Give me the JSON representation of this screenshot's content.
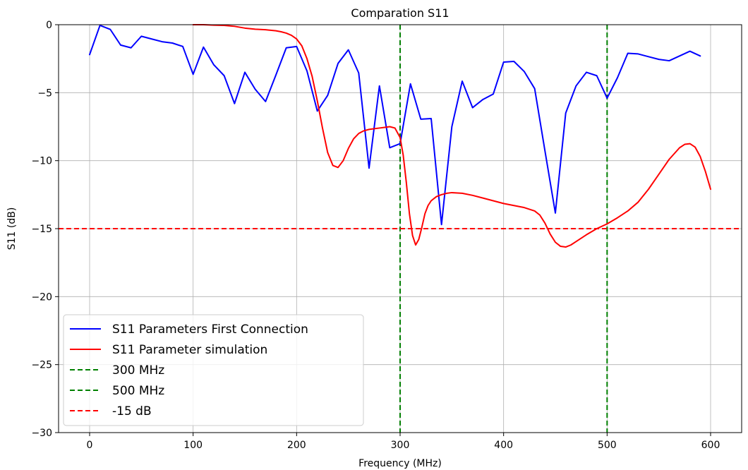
{
  "chart_data": {
    "type": "line",
    "title": "Comparation S11",
    "xlabel": "Frequency (MHz)",
    "ylabel": "S11 (dB)",
    "xlim": [
      -30,
      630
    ],
    "ylim": [
      -30,
      0
    ],
    "x_ticks": [
      0,
      100,
      200,
      300,
      400,
      500,
      600
    ],
    "y_ticks": [
      0,
      -5,
      -10,
      -15,
      -20,
      -25,
      -30
    ],
    "x_tick_labels": [
      "0",
      "100",
      "200",
      "300",
      "400",
      "500",
      "600"
    ],
    "y_tick_labels": [
      "0",
      "−5",
      "−10",
      "−15",
      "−20",
      "−25",
      "−30"
    ],
    "grid": true,
    "legend_position": "lower-left",
    "series": [
      {
        "name": "S11 Parameters First Connection",
        "color": "#0000ff",
        "style": "solid",
        "x": [
          0,
          10,
          20,
          30,
          40,
          50,
          60,
          70,
          80,
          90,
          100,
          110,
          120,
          130,
          140,
          150,
          160,
          170,
          180,
          190,
          200,
          210,
          220,
          230,
          240,
          250,
          260,
          270,
          280,
          290,
          300,
          310,
          320,
          330,
          340,
          350,
          360,
          370,
          380,
          390,
          400,
          410,
          420,
          430,
          440,
          450,
          460,
          470,
          480,
          490,
          500,
          510,
          520,
          530,
          540,
          550,
          560,
          570,
          580,
          590
        ],
        "y": [
          -2.2,
          -0.05,
          -0.35,
          -1.5,
          -1.7,
          -0.85,
          -1.05,
          -1.25,
          -1.35,
          -1.6,
          -3.65,
          -1.65,
          -2.95,
          -3.75,
          -5.8,
          -3.5,
          -4.75,
          -5.65,
          -3.7,
          -1.7,
          -1.6,
          -3.4,
          -6.35,
          -5.2,
          -2.85,
          -1.85,
          -3.55,
          -10.55,
          -4.5,
          -9.05,
          -8.75,
          -4.35,
          -6.95,
          -6.9,
          -14.7,
          -7.5,
          -4.15,
          -6.1,
          -5.5,
          -5.1,
          -2.75,
          -2.7,
          -3.45,
          -4.7,
          -9.3,
          -13.85,
          -6.5,
          -4.5,
          -3.5,
          -3.75,
          -5.4,
          -3.9,
          -2.1,
          -2.15,
          -2.35,
          -2.55,
          -2.65,
          -2.3,
          -1.95,
          -2.3
        ]
      },
      {
        "name": "S11 Parameter simulation",
        "color": "#ff0000",
        "style": "solid",
        "x": [
          100,
          110,
          120,
          130,
          140,
          150,
          160,
          170,
          180,
          185,
          190,
          195,
          200,
          205,
          210,
          215,
          220,
          225,
          230,
          235,
          240,
          245,
          250,
          255,
          260,
          265,
          270,
          275,
          280,
          285,
          290,
          295,
          300,
          303,
          306,
          309,
          312,
          315,
          318,
          321,
          324,
          327,
          330,
          335,
          340,
          345,
          350,
          360,
          370,
          380,
          390,
          400,
          410,
          420,
          430,
          435,
          440,
          445,
          450,
          455,
          460,
          465,
          470,
          480,
          490,
          500,
          510,
          520,
          530,
          540,
          550,
          560,
          570,
          575,
          580,
          585,
          590,
          595,
          600
        ],
        "y": [
          0,
          0,
          -0.03,
          -0.05,
          -0.12,
          -0.25,
          -0.33,
          -0.37,
          -0.45,
          -0.52,
          -0.62,
          -0.78,
          -1.05,
          -1.55,
          -2.5,
          -3.8,
          -5.6,
          -7.6,
          -9.4,
          -10.35,
          -10.5,
          -10.0,
          -9.1,
          -8.4,
          -8.0,
          -7.8,
          -7.7,
          -7.65,
          -7.6,
          -7.55,
          -7.5,
          -7.6,
          -8.3,
          -9.6,
          -11.6,
          -13.9,
          -15.5,
          -16.2,
          -15.8,
          -14.9,
          -13.9,
          -13.3,
          -12.95,
          -12.65,
          -12.5,
          -12.4,
          -12.35,
          -12.4,
          -12.55,
          -12.75,
          -12.95,
          -13.15,
          -13.3,
          -13.45,
          -13.7,
          -14.0,
          -14.6,
          -15.4,
          -16.0,
          -16.3,
          -16.35,
          -16.2,
          -15.95,
          -15.45,
          -15.0,
          -14.65,
          -14.2,
          -13.7,
          -13.05,
          -12.1,
          -11.0,
          -9.9,
          -9.05,
          -8.8,
          -8.75,
          -9.0,
          -9.7,
          -10.8,
          -12.1
        ]
      }
    ],
    "reference_lines": [
      {
        "name": "300 MHz",
        "orientation": "vertical",
        "value": 300,
        "color": "#008000",
        "style": "dashed"
      },
      {
        "name": "500 MHz",
        "orientation": "vertical",
        "value": 500,
        "color": "#008000",
        "style": "dashed"
      },
      {
        "name": "-15 dB",
        "orientation": "horizontal",
        "value": -15,
        "color": "#ff0000",
        "style": "dashed"
      }
    ]
  }
}
